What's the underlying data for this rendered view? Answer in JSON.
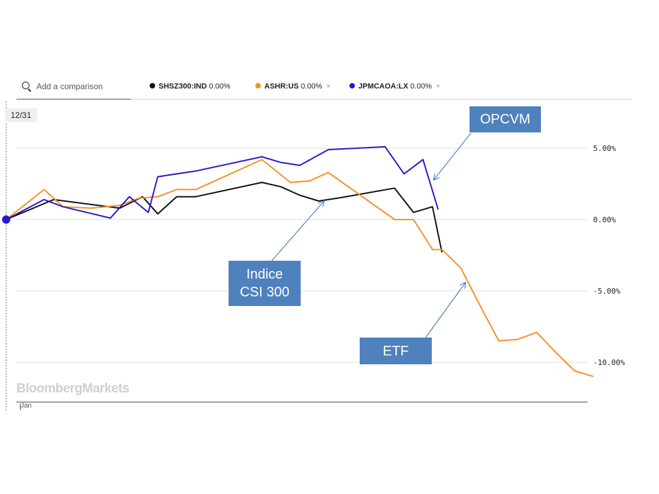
{
  "search": {
    "placeholder": "Add a comparison"
  },
  "legend": [
    {
      "ticker": "SHSZ300:IND",
      "change": "0.00%",
      "color": "#111111",
      "removable": false
    },
    {
      "ticker": "ASHR:US",
      "change": "0.00%",
      "color": "#f5912a",
      "removable": true,
      "remove_label": "×"
    },
    {
      "ticker": "JPMCAOA:LX",
      "change": "0.00%",
      "color": "#2d18c9",
      "removable": true,
      "remove_label": "×"
    }
  ],
  "date_badge": "12/31",
  "watermark": "BloombergMarkets",
  "x_axis": {
    "tick_label": "Jan"
  },
  "callouts": {
    "opcvm": "OPCVM",
    "indice_line1": "Indice",
    "indice_line2": "CSI 300",
    "etf": "ETF"
  },
  "colors": {
    "callout_fill": "#4f81bd",
    "gridline": "#dddddd",
    "marker": "#2d18c9"
  },
  "chart_data": {
    "type": "line",
    "ylim": [
      -12.5,
      8.5
    ],
    "grid": true,
    "y_ticks": [
      5,
      0,
      -5,
      -10
    ],
    "y_tick_labels": [
      "5.00%",
      "0.00%",
      "-5.00%",
      "-10.00%"
    ],
    "series": [
      {
        "name": "SHSZ300:IND",
        "color": "#111111",
        "x": [
          0,
          2.5,
          6,
          7.2,
          8,
          9,
          10,
          13.5,
          14.5,
          15.5,
          16.5,
          17.5,
          20.5,
          21.5,
          22.5,
          23
        ],
        "y": [
          0,
          1.4,
          0.8,
          1.6,
          0.4,
          1.6,
          1.6,
          2.6,
          2.3,
          1.7,
          1.3,
          1.5,
          2.2,
          0.5,
          0.9,
          -2.3
        ]
      },
      {
        "name": "ASHR:US",
        "color": "#f5912a",
        "x": [
          0,
          2,
          3,
          4.5,
          6,
          7,
          8,
          9,
          10,
          13.5,
          15,
          16,
          17,
          20.5,
          21.5,
          22.5,
          23,
          24,
          25,
          26,
          27,
          28,
          29,
          30,
          31
        ],
        "y": [
          0,
          2.1,
          0.9,
          0.8,
          1.0,
          1.5,
          1.6,
          2.1,
          2.1,
          4.2,
          2.6,
          2.7,
          3.3,
          0.0,
          0.0,
          -2.1,
          -2.1,
          -3.4,
          -6.0,
          -8.5,
          -8.4,
          -7.9,
          -9.3,
          -10.6,
          -11.0
        ]
      },
      {
        "name": "JPMCAOA:LX",
        "color": "#2d18c9",
        "x": [
          0,
          2,
          3,
          5.5,
          6.5,
          7.5,
          8,
          8.5,
          10,
          13.5,
          14.5,
          15.5,
          17,
          20,
          21,
          22,
          22.8
        ],
        "y": [
          0,
          1.4,
          0.9,
          0.1,
          1.6,
          0.5,
          3.0,
          3.1,
          3.4,
          4.4,
          4.0,
          3.8,
          4.9,
          5.1,
          3.2,
          4.2,
          0.7
        ]
      }
    ]
  }
}
